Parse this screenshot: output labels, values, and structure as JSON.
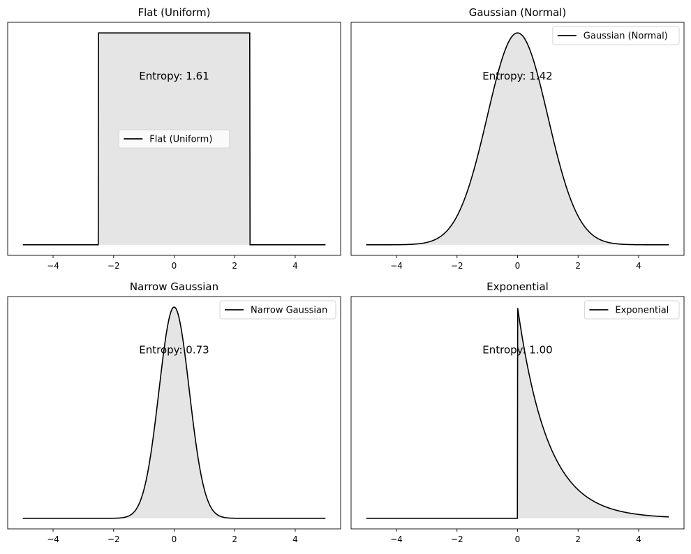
{
  "chart_data": [
    {
      "type": "area",
      "title": "Flat (Uniform)",
      "distribution": {
        "kind": "uniform",
        "low": -2.5,
        "high": 2.5
      },
      "x_range": [
        -5,
        5
      ],
      "xlim": [
        -5.5,
        5.5
      ],
      "ylim": [
        -0.05,
        1.05
      ],
      "normalized_peak": 1,
      "xticks": [
        "−4",
        "−2",
        "0",
        "2",
        "4"
      ],
      "xtick_values": [
        -4,
        -2,
        0,
        2,
        4
      ],
      "yticks_visible": false,
      "annotation": {
        "text": "Entropy: 1.61",
        "x": 0,
        "y": 0.8
      },
      "legend": {
        "label": "Flat (Uniform)",
        "placement": "center"
      },
      "line_color": "#000000",
      "fill_color": "#e5e5e5"
    },
    {
      "type": "area",
      "title": "Gaussian (Normal)",
      "distribution": {
        "kind": "gaussian",
        "mean": 0,
        "sigma": 1
      },
      "x_range": [
        -5,
        5
      ],
      "xlim": [
        -5.5,
        5.5
      ],
      "ylim": [
        -0.05,
        1.05
      ],
      "normalized_peak": 1,
      "xticks": [
        "−4",
        "−2",
        "0",
        "2",
        "4"
      ],
      "xtick_values": [
        -4,
        -2,
        0,
        2,
        4
      ],
      "yticks_visible": false,
      "annotation": {
        "text": "Entropy: 1.42",
        "x": 0,
        "y": 0.8
      },
      "legend": {
        "label": "Gaussian (Normal)",
        "placement": "upper-right"
      },
      "line_color": "#000000",
      "fill_color": "#e5e5e5"
    },
    {
      "type": "area",
      "title": "Narrow Gaussian",
      "distribution": {
        "kind": "gaussian",
        "mean": 0,
        "sigma": 0.5
      },
      "x_range": [
        -5,
        5
      ],
      "xlim": [
        -5.5,
        5.5
      ],
      "ylim": [
        -0.05,
        1.05
      ],
      "normalized_peak": 1,
      "xticks": [
        "−4",
        "−2",
        "0",
        "2",
        "4"
      ],
      "xtick_values": [
        -4,
        -2,
        0,
        2,
        4
      ],
      "yticks_visible": false,
      "annotation": {
        "text": "Entropy: 0.73",
        "x": 0,
        "y": 0.8
      },
      "legend": {
        "label": "Narrow Gaussian",
        "placement": "upper-right"
      },
      "line_color": "#000000",
      "fill_color": "#e5e5e5"
    },
    {
      "type": "area",
      "title": "Exponential",
      "distribution": {
        "kind": "exponential",
        "rate": 1,
        "start": 0
      },
      "x_range": [
        -5,
        5
      ],
      "xlim": [
        -5.5,
        5.5
      ],
      "ylim": [
        -0.05,
        1.05
      ],
      "normalized_peak": 1,
      "xticks": [
        "−4",
        "−2",
        "0",
        "2",
        "4"
      ],
      "xtick_values": [
        -4,
        -2,
        0,
        2,
        4
      ],
      "yticks_visible": false,
      "annotation": {
        "text": "Entropy: 1.00",
        "x": 0,
        "y": 0.8
      },
      "legend": {
        "label": "Exponential",
        "placement": "upper-right"
      },
      "line_color": "#000000",
      "fill_color": "#e5e5e5"
    }
  ]
}
